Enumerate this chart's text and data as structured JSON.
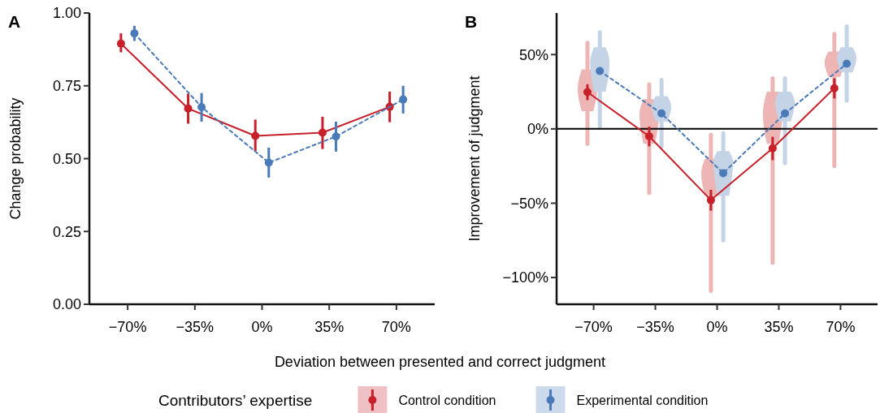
{
  "chart_data": [
    {
      "type": "line",
      "title": "A",
      "xlabel": "Deviation between presented and correct judgment",
      "ylabel": "Change probability",
      "legend": "bottom",
      "legend_title": "Contributors’ expertise",
      "categories": [
        "−70%",
        "−35%",
        "0%",
        "35%",
        "70%"
      ],
      "ylim": [
        0,
        1
      ],
      "yticks": [
        {
          "value": 0,
          "label": "0.00"
        },
        {
          "value": 0.25,
          "label": "0.25"
        },
        {
          "value": 0.5,
          "label": "0.50"
        },
        {
          "value": 0.75,
          "label": "0.75"
        },
        {
          "value": 1,
          "label": "1.00"
        }
      ],
      "marker": "circle",
      "grid": false,
      "series": [
        {
          "name": "Control condition",
          "color": "#c8202a",
          "line_style": "solid",
          "values": [
            0.895,
            0.672,
            0.578,
            0.589,
            0.678
          ],
          "errors": [
            [
              0.865,
              0.93
            ],
            [
              0.62,
              0.723
            ],
            [
              0.526,
              0.634
            ],
            [
              0.533,
              0.644
            ],
            [
              0.625,
              0.73
            ]
          ]
        },
        {
          "name": "Experimental condition",
          "color": "#4a7ab8",
          "line_style": "dashed",
          "values": [
            0.93,
            0.677,
            0.486,
            0.576,
            0.703
          ],
          "errors": [
            [
              0.904,
              0.956
            ],
            [
              0.627,
              0.725
            ],
            [
              0.435,
              0.538
            ],
            [
              0.524,
              0.627
            ],
            [
              0.655,
              0.75
            ]
          ]
        }
      ]
    },
    {
      "type": "line",
      "title": "B",
      "ylabel": "Improvement of judgment",
      "categories": [
        "−70%",
        "−35%",
        "0%",
        "35%",
        "70%"
      ],
      "ylim": [
        -118,
        78
      ],
      "yticks": [
        {
          "value": -100,
          "label": "−100%"
        },
        {
          "value": -50,
          "label": "−50%"
        },
        {
          "value": 0,
          "label": "0%"
        },
        {
          "value": 50,
          "label": "50%"
        }
      ],
      "marker": "circle",
      "grid": false,
      "ref_lines": [
        {
          "axis": "y",
          "value": 0,
          "color": "#000000"
        }
      ],
      "series": [
        {
          "type": "box",
          "color": "#eeb5b5",
          "boxes": [
            {
              "low": -10,
              "q1": 12,
              "median": 27,
              "q3": 40,
              "high": 58
            },
            {
              "low": -43,
              "q1": -10,
              "median": 10,
              "q3": 20,
              "high": 30
            },
            {
              "low": -109,
              "q1": -45,
              "median": -30,
              "q3": -20,
              "high": -4
            },
            {
              "low": -90,
              "q1": -10,
              "median": 10,
              "q3": 25,
              "high": 34
            },
            {
              "low": -25,
              "q1": 35,
              "median": 45,
              "q3": 52,
              "high": 64
            }
          ]
        },
        {
          "type": "box",
          "color": "#c5d3e6",
          "boxes": [
            {
              "low": 1,
              "q1": 25,
              "median": 45,
              "q3": 55,
              "high": 65
            },
            {
              "low": -12,
              "q1": 5,
              "median": 15,
              "q3": 22,
              "high": 33
            },
            {
              "low": -75,
              "q1": -45,
              "median": -22,
              "q3": -15,
              "high": -3
            },
            {
              "low": -23,
              "q1": 5,
              "median": 18,
              "q3": 25,
              "high": 34
            },
            {
              "low": 19,
              "q1": 38,
              "median": 48,
              "q3": 55,
              "high": 69
            }
          ]
        },
        {
          "name": "Control condition",
          "color": "#c8202a",
          "line_style": "solid",
          "values": [
            24.8,
            -5,
            -47.9,
            -13,
            27.4
          ],
          "errors": [
            [
              19.4,
              30
            ],
            [
              -11.7,
              1.5
            ],
            [
              -55,
              -41
            ],
            [
              -21,
              -5.3
            ],
            [
              20.5,
              34
            ]
          ]
        },
        {
          "name": "Experimental condition",
          "color": "#4a7ab8",
          "line_style": "dashed",
          "values": [
            39,
            10.4,
            -29.8,
            10.4,
            43.9
          ]
        }
      ]
    }
  ]
}
